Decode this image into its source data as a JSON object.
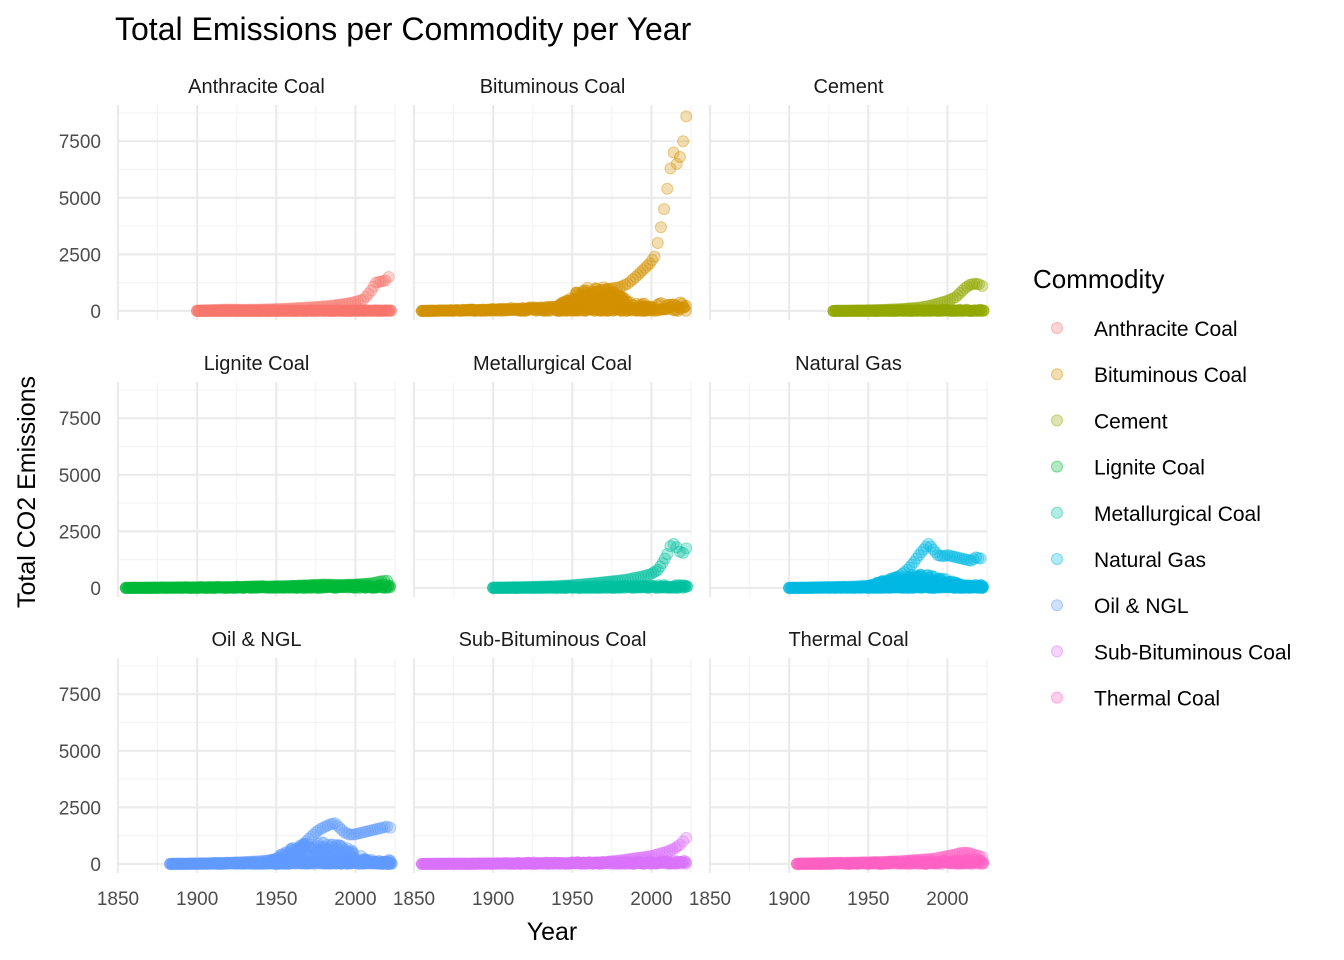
{
  "chart_data": {
    "type": "scatter",
    "title": "Total Emissions per Commodity per Year",
    "xlabel": "Year",
    "ylabel": "Total CO2 Emissions",
    "xlim": [
      1850,
      2025
    ],
    "ylim": [
      -400,
      9100
    ],
    "x_ticks": [
      1850,
      1900,
      1950,
      2000
    ],
    "y_ticks": [
      0,
      2500,
      5000,
      7500
    ],
    "facet_layout": "3x3 grid, shared axes",
    "legend_title": "Commodity",
    "legend_position": "right",
    "grid": true,
    "colors": {
      "Anthracite Coal": "#F8766D",
      "Bituminous Coal": "#D39200",
      "Cement": "#93AA00",
      "Lignite Coal": "#00BA38",
      "Metallurgical Coal": "#00C19F",
      "Natural Gas": "#00B9E3",
      "Oil & NGL": "#619CFF",
      "Sub-Bituminous Coal": "#DB72FB",
      "Thermal Coal": "#FF61C3"
    },
    "series": [
      {
        "name": "Anthracite Coal",
        "x": [
          1900,
          1910,
          1920,
          1930,
          1940,
          1950,
          1955,
          1960,
          1965,
          1970,
          1975,
          1980,
          1985,
          1990,
          1995,
          2000,
          2005,
          2010,
          2013,
          2016,
          2019,
          2021
        ],
        "y": [
          20,
          40,
          60,
          50,
          60,
          80,
          90,
          110,
          130,
          150,
          170,
          200,
          230,
          280,
          330,
          400,
          500,
          900,
          1250,
          1300,
          1350,
          1500
        ],
        "base_x": [
          1900,
          2023
        ],
        "base_y": [
          0,
          40
        ]
      },
      {
        "name": "Bituminous Coal",
        "x": [
          1855,
          1870,
          1885,
          1900,
          1910,
          1920,
          1930,
          1940,
          1945,
          1950,
          1955,
          1960,
          1965,
          1970,
          1975,
          1980,
          1985,
          1990,
          1993,
          1996,
          1999,
          2002,
          2004,
          2006,
          2008,
          2010,
          2012,
          2014,
          2016,
          2018,
          2020,
          2022
        ],
        "y": [
          10,
          20,
          40,
          60,
          80,
          100,
          120,
          200,
          250,
          350,
          500,
          700,
          850,
          950,
          1000,
          1050,
          1200,
          1500,
          1700,
          1900,
          2100,
          2400,
          3000,
          3700,
          4500,
          5400,
          6300,
          7000,
          6500,
          6800,
          7500,
          8600
        ],
        "cluster": {
          "x": [
            1940,
            2000
          ],
          "y": [
            200,
            1100
          ]
        },
        "base_x": [
          1855,
          2023
        ],
        "base_y": [
          0,
          400
        ]
      },
      {
        "name": "Cement",
        "x": [
          1928,
          1940,
          1950,
          1960,
          1970,
          1980,
          1985,
          1990,
          1995,
          2000,
          2005,
          2008,
          2011,
          2014,
          2017,
          2020,
          2022
        ],
        "y": [
          10,
          20,
          30,
          50,
          80,
          130,
          180,
          250,
          350,
          450,
          600,
          800,
          1000,
          1150,
          1200,
          1180,
          1100
        ],
        "base_x": [
          1928,
          2023
        ],
        "base_y": [
          0,
          60
        ]
      },
      {
        "name": "Lignite Coal",
        "x": [
          1855,
          1880,
          1900,
          1920,
          1940,
          1960,
          1970,
          1980,
          1990,
          2000,
          2010,
          2015,
          2020
        ],
        "y": [
          10,
          20,
          30,
          40,
          60,
          90,
          120,
          150,
          130,
          150,
          200,
          280,
          320
        ],
        "base_x": [
          1855,
          2023
        ],
        "base_y": [
          0,
          150
        ]
      },
      {
        "name": "Metallurgical Coal",
        "x": [
          1900,
          1920,
          1940,
          1950,
          1960,
          1970,
          1980,
          1985,
          1990,
          1995,
          2000,
          2004,
          2007,
          2010,
          2012,
          2014,
          2016,
          2018,
          2020,
          2022
        ],
        "y": [
          20,
          40,
          80,
          120,
          180,
          250,
          330,
          380,
          450,
          520,
          620,
          800,
          1100,
          1500,
          1850,
          1950,
          1800,
          1600,
          1550,
          1750
        ],
        "base_x": [
          1900,
          2023
        ],
        "base_y": [
          0,
          150
        ]
      },
      {
        "name": "Natural Gas",
        "x": [
          1900,
          1920,
          1940,
          1950,
          1955,
          1960,
          1965,
          1970,
          1973,
          1976,
          1979,
          1982,
          1985,
          1988,
          1991,
          1994,
          1997,
          2000,
          2003,
          2006,
          2009,
          2012,
          2015,
          2018,
          2021
        ],
        "y": [
          10,
          30,
          60,
          100,
          150,
          250,
          380,
          550,
          700,
          900,
          1150,
          1450,
          1700,
          1950,
          1700,
          1450,
          1400,
          1450,
          1400,
          1350,
          1300,
          1250,
          1200,
          1350,
          1300
        ],
        "cluster": {
          "x": [
            1950,
            2023
          ],
          "y": [
            100,
            600
          ]
        },
        "base_x": [
          1900,
          2023
        ],
        "base_y": [
          0,
          150
        ]
      },
      {
        "name": "Oil & NGL",
        "x": [
          1883,
          1900,
          1920,
          1940,
          1950,
          1955,
          1960,
          1963,
          1966,
          1969,
          1972,
          1975,
          1978,
          1981,
          1984,
          1987,
          1990,
          1993,
          1996,
          1999,
          2002,
          2005,
          2008,
          2011,
          2014,
          2017,
          2020,
          2022
        ],
        "y": [
          10,
          20,
          50,
          120,
          200,
          300,
          450,
          600,
          800,
          1000,
          1200,
          1400,
          1550,
          1650,
          1750,
          1800,
          1600,
          1400,
          1300,
          1300,
          1350,
          1400,
          1450,
          1500,
          1550,
          1600,
          1650,
          1600
        ],
        "cluster": {
          "x": [
            1945,
            2023
          ],
          "y": [
            100,
            1000
          ]
        },
        "base_x": [
          1883,
          2023
        ],
        "base_y": [
          0,
          200
        ]
      },
      {
        "name": "Sub-Bituminous Coal",
        "x": [
          1855,
          1900,
          1950,
          1970,
          1980,
          1990,
          2000,
          2005,
          2010,
          2015,
          2018,
          2020,
          2022
        ],
        "y": [
          10,
          20,
          40,
          80,
          150,
          250,
          350,
          450,
          550,
          700,
          850,
          1000,
          1150
        ],
        "base_x": [
          1855,
          2023
        ],
        "base_y": [
          0,
          150
        ]
      },
      {
        "name": "Thermal Coal",
        "x": [
          1905,
          1920,
          1940,
          1960,
          1970,
          1980,
          1990,
          1995,
          2000,
          2005,
          2008,
          2011,
          2014,
          2017,
          2020,
          2022
        ],
        "y": [
          20,
          40,
          60,
          90,
          120,
          170,
          220,
          280,
          350,
          420,
          480,
          500,
          480,
          400,
          350,
          300
        ],
        "base_x": [
          1905,
          2023
        ],
        "base_y": [
          0,
          200
        ]
      }
    ]
  }
}
